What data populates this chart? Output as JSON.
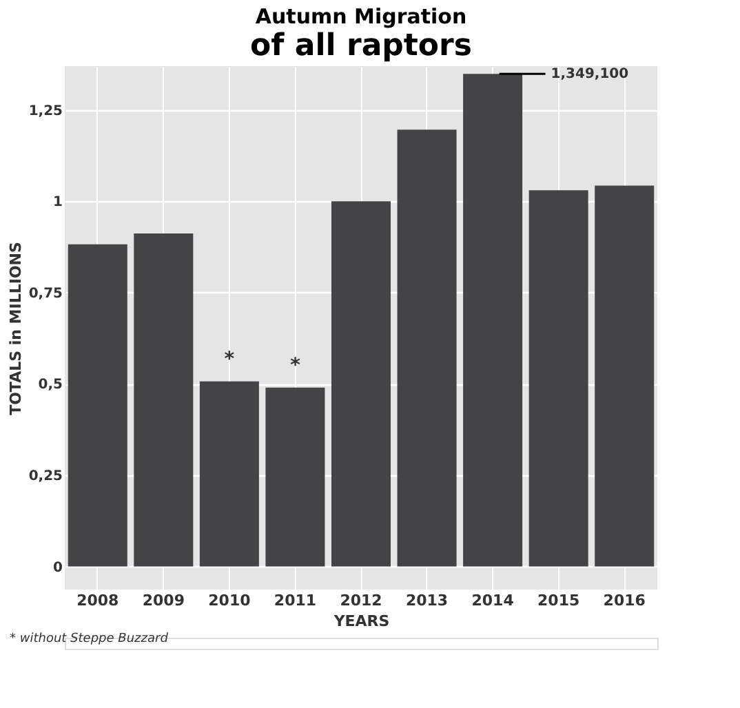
{
  "chart_data": {
    "type": "bar",
    "title": "Autumn Migration",
    "subtitle": "of all raptors",
    "xlabel": "YEARS",
    "ylabel": "TOTALS in MILLIONS",
    "categories": [
      "2008",
      "2009",
      "2010",
      "2011",
      "2012",
      "2013",
      "2014",
      "2015",
      "2016"
    ],
    "values": [
      0.882,
      0.912,
      0.507,
      0.49,
      1.0,
      1.196,
      1.349,
      1.03,
      1.043
    ],
    "color": "#444446",
    "ylim": [
      -0.063,
      1.37
    ],
    "yticks": [
      0,
      {
        "value": 0.25,
        "label": "0,25"
      },
      {
        "value": 0.5,
        "label": "0,5"
      },
      {
        "value": 0.75,
        "label": "0,75"
      },
      1,
      {
        "value": 1.25,
        "label": "1,25"
      }
    ],
    "grid": true,
    "annotations": [
      {
        "text": "*",
        "x": "2010",
        "y": 0.507
      },
      {
        "text": "*",
        "x": "2011",
        "y": 0.49
      },
      {
        "text": "1,349,100",
        "x": "2014",
        "y": 1.349
      },
      "* without Steppe Buzzard"
    ]
  }
}
